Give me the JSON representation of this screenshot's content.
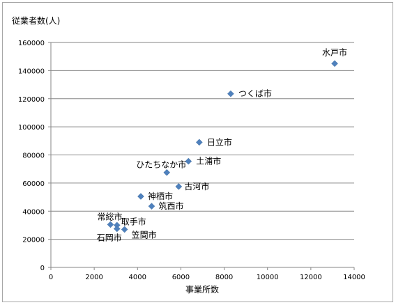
{
  "chart_data": {
    "type": "scatter",
    "title": "",
    "xlabel": "事業所数",
    "ylabel": "従業者数(人)",
    "xlim": [
      0,
      14000
    ],
    "ylim": [
      0,
      160000
    ],
    "x_ticks": [
      "0",
      "2000",
      "4000",
      "6000",
      "8000",
      "10000",
      "12000",
      "14000"
    ],
    "y_ticks": [
      "0",
      "20000",
      "40000",
      "60000",
      "80000",
      "100000",
      "120000",
      "140000",
      "160000"
    ],
    "grid": true,
    "marker_color": "#4f81bd",
    "points": [
      {
        "label": "水戸市",
        "x": 13100,
        "y": 145000
      },
      {
        "label": "つくば市",
        "x": 8300,
        "y": 123500
      },
      {
        "label": "日立市",
        "x": 6850,
        "y": 89000
      },
      {
        "label": "土浦市",
        "x": 6350,
        "y": 75500
      },
      {
        "label": "ひたちなか市",
        "x": 5350,
        "y": 67500
      },
      {
        "label": "古河市",
        "x": 5900,
        "y": 57500
      },
      {
        "label": "神栖市",
        "x": 4150,
        "y": 50500
      },
      {
        "label": "筑西市",
        "x": 4650,
        "y": 43500
      },
      {
        "label": "常総市",
        "x": 2750,
        "y": 30500
      },
      {
        "label": "取手市",
        "x": 3050,
        "y": 30000
      },
      {
        "label": "石岡市",
        "x": 3050,
        "y": 27500
      },
      {
        "label": "笠間市",
        "x": 3400,
        "y": 27000
      }
    ]
  }
}
